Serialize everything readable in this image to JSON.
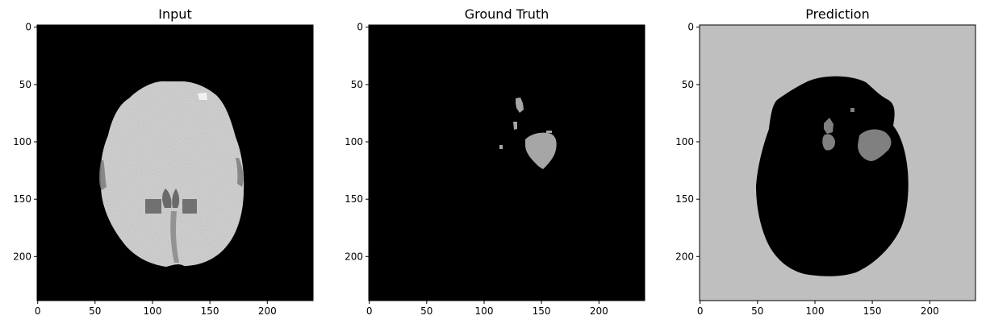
{
  "figure": {
    "panels": [
      {
        "title": "Input",
        "x_ticks": [
          "0",
          "50",
          "100",
          "150",
          "200"
        ],
        "y_ticks": [
          "0",
          "50",
          "100",
          "150",
          "200"
        ]
      },
      {
        "title": "Ground Truth",
        "x_ticks": [
          "0",
          "50",
          "100",
          "150",
          "200"
        ],
        "y_ticks": [
          "0",
          "50",
          "100",
          "150",
          "200"
        ]
      },
      {
        "title": "Prediction",
        "x_ticks": [
          "0",
          "50",
          "100",
          "150",
          "200"
        ],
        "y_ticks": [
          "0",
          "50",
          "100",
          "150",
          "200"
        ]
      }
    ],
    "colors": {
      "background": "#000000",
      "brain_tissue": "#d8d8d8",
      "ground_truth_lesion": "#a6a6a6",
      "prediction_background": "#bfbfbf",
      "prediction_lesion": "#808080"
    }
  }
}
